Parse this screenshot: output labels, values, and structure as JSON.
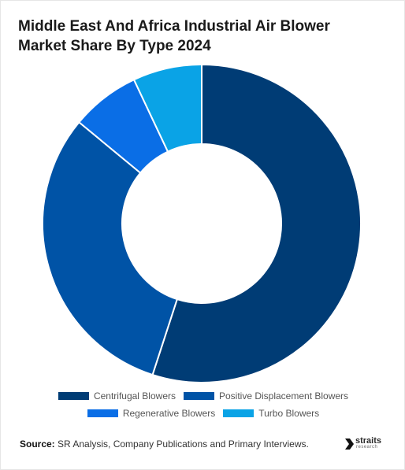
{
  "title_line1": "Middle East And Africa Industrial Air Blower",
  "title_line2": "Market Share By Type 2024",
  "chart_data": {
    "type": "pie",
    "donut": true,
    "categories": [
      "Centrifugal Blowers",
      "Positive Displacement Blowers",
      "Regenerative Blowers",
      "Turbo Blowers"
    ],
    "values": [
      55,
      31,
      7,
      7
    ],
    "colors": [
      "#003c75",
      "#0053a6",
      "#0a6ee6",
      "#0aa3e6"
    ],
    "legend_position": "bottom"
  },
  "legend": {
    "row1": [
      "Centrifugal Blowers",
      "Positive Displacement Blowers"
    ],
    "row2": [
      "Regenerative Blowers",
      "Turbo Blowers"
    ]
  },
  "footer": {
    "source_label": "Source:",
    "source_text": " SR Analysis, Company Publications and Primary Interviews."
  },
  "brand": {
    "name": "straits",
    "sub": "research"
  }
}
